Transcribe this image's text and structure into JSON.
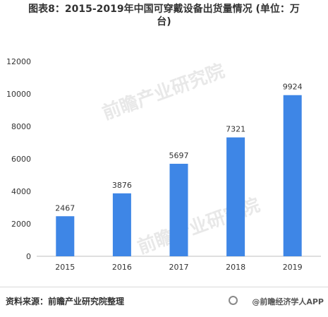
{
  "title": {
    "line1": "图表8：2015-2019年中国可穿戴设备出货量情况 (单位：万",
    "line2": "台)"
  },
  "chart_data": {
    "type": "bar",
    "categories": [
      "2015",
      "2016",
      "2017",
      "2018",
      "2019"
    ],
    "values": [
      2467,
      3876,
      5697,
      7321,
      9924
    ],
    "yticks": [
      "0",
      "2000",
      "4000",
      "6000",
      "8000",
      "10000",
      "12000"
    ],
    "ylim": [
      0,
      12000
    ],
    "bar_color": "#3e86e6",
    "grid": false
  },
  "footer": {
    "source": "资料来源：前瞻产业研究院整理",
    "brand": "@前瞻经济学人APP"
  },
  "watermark": {
    "text": "前瞻产业研究院"
  }
}
